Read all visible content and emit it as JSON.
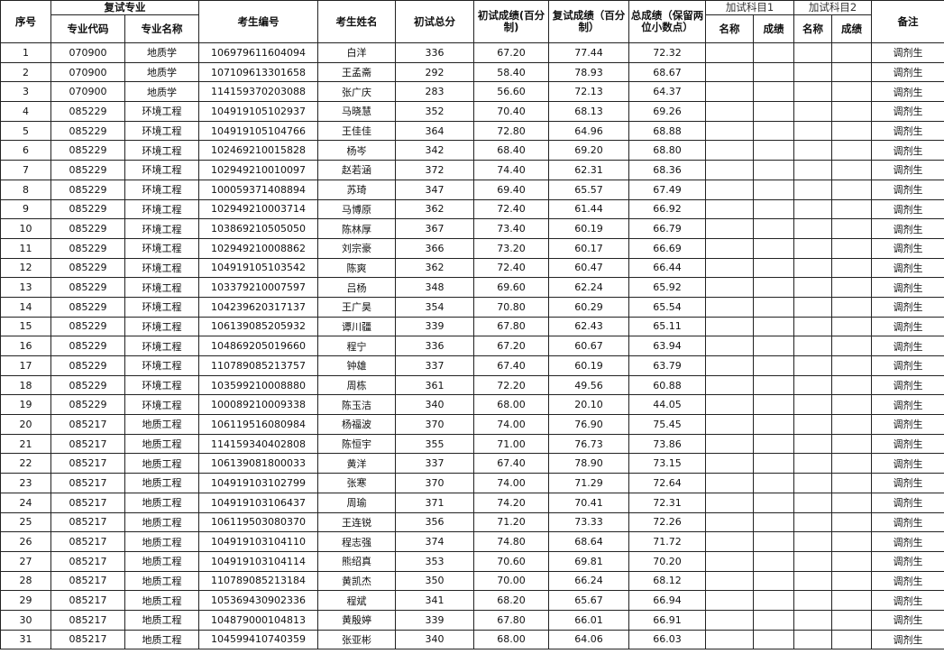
{
  "headers": {
    "seq": "序号",
    "major_group": "复试专业",
    "major_code": "专业代码",
    "major_name": "专业名称",
    "exam_id": "考生编号",
    "name": "考生姓名",
    "initial_total": "初试总分",
    "initial_pct": "初试成绩(百分制)",
    "retest_pct": "复试成绩（百分制）",
    "total": "总成绩（保留两位小数点）",
    "extra1": "加试科目1",
    "extra2": "加试科目2",
    "extra_name": "名称",
    "extra_score": "成绩",
    "remark": "备注"
  },
  "rows": [
    [
      "1",
      "070900",
      "地质学",
      "106979611604094",
      "白洋",
      "336",
      "67.20",
      "77.44",
      "72.32",
      "调剂生"
    ],
    [
      "2",
      "070900",
      "地质学",
      "107109613301658",
      "王孟斋",
      "292",
      "58.40",
      "78.93",
      "68.67",
      "调剂生"
    ],
    [
      "3",
      "070900",
      "地质学",
      "114159370203088",
      "张广庆",
      "283",
      "56.60",
      "72.13",
      "64.37",
      "调剂生"
    ],
    [
      "4",
      "085229",
      "环境工程",
      "104919105102937",
      "马晓慧",
      "352",
      "70.40",
      "68.13",
      "69.26",
      "调剂生"
    ],
    [
      "5",
      "085229",
      "环境工程",
      "104919105104766",
      "王佳佳",
      "364",
      "72.80",
      "64.96",
      "68.88",
      "调剂生"
    ],
    [
      "6",
      "085229",
      "环境工程",
      "102469210015828",
      "杨岑",
      "342",
      "68.40",
      "69.20",
      "68.80",
      "调剂生"
    ],
    [
      "7",
      "085229",
      "环境工程",
      "102949210010097",
      "赵若涵",
      "372",
      "74.40",
      "62.31",
      "68.36",
      "调剂生"
    ],
    [
      "8",
      "085229",
      "环境工程",
      "100059371408894",
      "苏琦",
      "347",
      "69.40",
      "65.57",
      "67.49",
      "调剂生"
    ],
    [
      "9",
      "085229",
      "环境工程",
      "102949210003714",
      "马博原",
      "362",
      "72.40",
      "61.44",
      "66.92",
      "调剂生"
    ],
    [
      "10",
      "085229",
      "环境工程",
      "103869210505050",
      "陈林厚",
      "367",
      "73.40",
      "60.19",
      "66.79",
      "调剂生"
    ],
    [
      "11",
      "085229",
      "环境工程",
      "102949210008862",
      "刘宗豪",
      "366",
      "73.20",
      "60.17",
      "66.69",
      "调剂生"
    ],
    [
      "12",
      "085229",
      "环境工程",
      "104919105103542",
      "陈爽",
      "362",
      "72.40",
      "60.47",
      "66.44",
      "调剂生"
    ],
    [
      "13",
      "085229",
      "环境工程",
      "103379210007597",
      "吕杨",
      "348",
      "69.60",
      "62.24",
      "65.92",
      "调剂生"
    ],
    [
      "14",
      "085229",
      "环境工程",
      "104239620317137",
      "王广昊",
      "354",
      "70.80",
      "60.29",
      "65.54",
      "调剂生"
    ],
    [
      "15",
      "085229",
      "环境工程",
      "106139085205932",
      "谭川疆",
      "339",
      "67.80",
      "62.43",
      "65.11",
      "调剂生"
    ],
    [
      "16",
      "085229",
      "环境工程",
      "104869205019660",
      "程宁",
      "336",
      "67.20",
      "60.67",
      "63.94",
      "调剂生"
    ],
    [
      "17",
      "085229",
      "环境工程",
      "110789085213757",
      "钟雄",
      "337",
      "67.40",
      "60.19",
      "63.79",
      "调剂生"
    ],
    [
      "18",
      "085229",
      "环境工程",
      "103599210008880",
      "周栋",
      "361",
      "72.20",
      "49.56",
      "60.88",
      "调剂生"
    ],
    [
      "19",
      "085229",
      "环境工程",
      "100089210009338",
      "陈玉洁",
      "340",
      "68.00",
      "20.10",
      "44.05",
      "调剂生"
    ],
    [
      "20",
      "085217",
      "地质工程",
      "106119516080984",
      "杨福波",
      "370",
      "74.00",
      "76.90",
      "75.45",
      "调剂生"
    ],
    [
      "21",
      "085217",
      "地质工程",
      "114159340402808",
      "陈恒宇",
      "355",
      "71.00",
      "76.73",
      "73.86",
      "调剂生"
    ],
    [
      "22",
      "085217",
      "地质工程",
      "106139081800033",
      "黄洋",
      "337",
      "67.40",
      "78.90",
      "73.15",
      "调剂生"
    ],
    [
      "23",
      "085217",
      "地质工程",
      "104919103102799",
      "张寒",
      "370",
      "74.00",
      "71.29",
      "72.64",
      "调剂生"
    ],
    [
      "24",
      "085217",
      "地质工程",
      "104919103106437",
      "周瑜",
      "371",
      "74.20",
      "70.41",
      "72.31",
      "调剂生"
    ],
    [
      "25",
      "085217",
      "地质工程",
      "106119503080370",
      "王连锐",
      "356",
      "71.20",
      "73.33",
      "72.26",
      "调剂生"
    ],
    [
      "26",
      "085217",
      "地质工程",
      "104919103104110",
      "程志强",
      "374",
      "74.80",
      "68.64",
      "71.72",
      "调剂生"
    ],
    [
      "27",
      "085217",
      "地质工程",
      "104919103104114",
      "熊绍真",
      "353",
      "70.60",
      "69.81",
      "70.20",
      "调剂生"
    ],
    [
      "28",
      "085217",
      "地质工程",
      "110789085213184",
      "黄凯杰",
      "350",
      "70.00",
      "66.24",
      "68.12",
      "调剂生"
    ],
    [
      "29",
      "085217",
      "地质工程",
      "105369430902336",
      "程斌",
      "341",
      "68.20",
      "65.67",
      "66.94",
      "调剂生"
    ],
    [
      "30",
      "085217",
      "地质工程",
      "104879000104813",
      "黄殷婷",
      "339",
      "67.80",
      "66.01",
      "66.91",
      "调剂生"
    ],
    [
      "31",
      "085217",
      "地质工程",
      "104599410740359",
      "张亚彬",
      "340",
      "68.00",
      "64.06",
      "66.03",
      "调剂生"
    ]
  ]
}
